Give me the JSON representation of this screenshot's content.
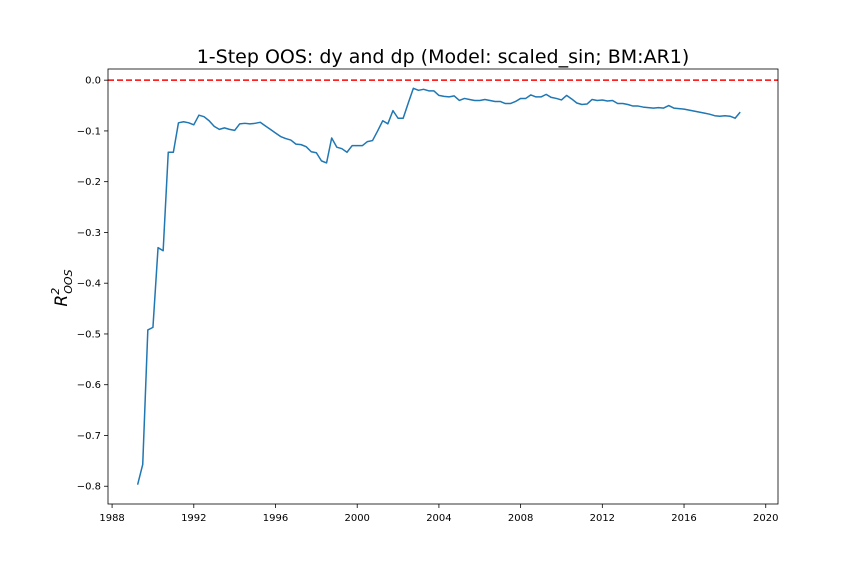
{
  "chart_data": {
    "type": "line",
    "title": "1-Step OOS: dy and dp (Model: scaled_sin; BM:AR1)",
    "ylabel_main": "R",
    "ylabel_sup": "2",
    "ylabel_sub": "OOS",
    "xlabel": "",
    "xlim": [
      1987.8,
      2020.6
    ],
    "ylim": [
      -0.835,
      0.022
    ],
    "xticks": [
      1988,
      1992,
      1996,
      2000,
      2004,
      2008,
      2012,
      2016,
      2020
    ],
    "xtick_labels": [
      "1988",
      "1992",
      "1996",
      "2000",
      "2004",
      "2008",
      "2012",
      "2016",
      "2020"
    ],
    "yticks": [
      0.0,
      -0.1,
      -0.2,
      -0.3,
      -0.4,
      -0.5,
      -0.6,
      -0.7,
      -0.8
    ],
    "ytick_labels": [
      "0.0",
      "−0.1",
      "−0.2",
      "−0.3",
      "−0.4",
      "−0.5",
      "−0.6",
      "−0.7",
      "−0.8"
    ],
    "reference_line": {
      "y": 0.0,
      "color": "#ff0000",
      "style": "dashed"
    },
    "grid": false,
    "series": [
      {
        "color": "#1f77b4",
        "x": [
          1989.25,
          1989.5,
          1989.75,
          1990.0,
          1990.25,
          1990.5,
          1990.75,
          1991.0,
          1991.25,
          1991.5,
          1991.75,
          1992.0,
          1992.25,
          1992.5,
          1992.75,
          1993.0,
          1993.25,
          1993.5,
          1993.75,
          1994.0,
          1994.25,
          1994.5,
          1994.75,
          1995.0,
          1995.25,
          1995.5,
          1995.75,
          1996.0,
          1996.25,
          1996.5,
          1996.75,
          1997.0,
          1997.25,
          1997.5,
          1997.75,
          1998.0,
          1998.25,
          1998.5,
          1998.75,
          1999.0,
          1999.25,
          1999.5,
          1999.75,
          2000.0,
          2000.25,
          2000.5,
          2000.75,
          2001.0,
          2001.25,
          2001.5,
          2001.75,
          2002.0,
          2002.25,
          2002.5,
          2002.75,
          2003.0,
          2003.25,
          2003.5,
          2003.75,
          2004.0,
          2004.25,
          2004.5,
          2004.75,
          2005.0,
          2005.25,
          2005.5,
          2005.75,
          2006.0,
          2006.25,
          2006.5,
          2006.75,
          2007.0,
          2007.25,
          2007.5,
          2007.75,
          2008.0,
          2008.25,
          2008.5,
          2008.75,
          2009.0,
          2009.25,
          2009.5,
          2009.75,
          2010.0,
          2010.25,
          2010.5,
          2010.75,
          2011.0,
          2011.25,
          2011.5,
          2011.75,
          2012.0,
          2012.25,
          2012.5,
          2012.75,
          2013.0,
          2013.25,
          2013.5,
          2013.75,
          2014.0,
          2014.25,
          2014.5,
          2014.75,
          2015.0,
          2015.25,
          2015.5,
          2015.75,
          2016.0,
          2016.25,
          2016.5,
          2016.75,
          2017.0,
          2017.25,
          2017.5,
          2017.75,
          2018.0,
          2018.25,
          2018.5,
          2018.75
        ],
        "values": [
          -0.797,
          -0.757,
          -0.492,
          -0.487,
          -0.33,
          -0.336,
          -0.142,
          -0.142,
          -0.084,
          -0.082,
          -0.084,
          -0.088,
          -0.069,
          -0.072,
          -0.08,
          -0.091,
          -0.097,
          -0.094,
          -0.097,
          -0.099,
          -0.086,
          -0.085,
          -0.086,
          -0.085,
          -0.083,
          -0.09,
          -0.097,
          -0.104,
          -0.111,
          -0.115,
          -0.118,
          -0.126,
          -0.127,
          -0.131,
          -0.141,
          -0.143,
          -0.159,
          -0.163,
          -0.114,
          -0.132,
          -0.135,
          -0.142,
          -0.129,
          -0.129,
          -0.129,
          -0.121,
          -0.119,
          -0.1,
          -0.08,
          -0.086,
          -0.06,
          -0.075,
          -0.075,
          -0.045,
          -0.016,
          -0.02,
          -0.018,
          -0.021,
          -0.021,
          -0.03,
          -0.032,
          -0.033,
          -0.031,
          -0.04,
          -0.036,
          -0.038,
          -0.04,
          -0.04,
          -0.038,
          -0.04,
          -0.042,
          -0.042,
          -0.046,
          -0.046,
          -0.042,
          -0.036,
          -0.036,
          -0.029,
          -0.033,
          -0.033,
          -0.028,
          -0.034,
          -0.036,
          -0.039,
          -0.03,
          -0.037,
          -0.045,
          -0.048,
          -0.047,
          -0.038,
          -0.04,
          -0.039,
          -0.041,
          -0.04,
          -0.046,
          -0.046,
          -0.048,
          -0.051,
          -0.051,
          -0.053,
          -0.054,
          -0.055,
          -0.054,
          -0.055,
          -0.05,
          -0.055,
          -0.056,
          -0.057,
          -0.059,
          -0.061,
          -0.063,
          -0.065,
          -0.067,
          -0.07,
          -0.071,
          -0.07,
          -0.071,
          -0.075,
          -0.063
        ]
      }
    ]
  }
}
